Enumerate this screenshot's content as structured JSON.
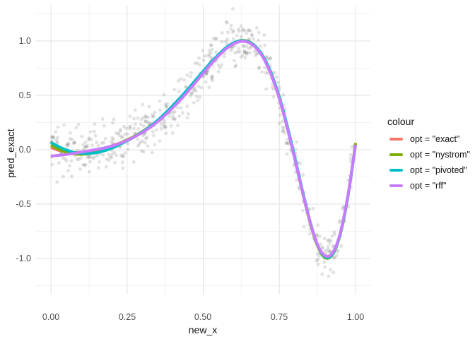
{
  "chart_data": {
    "type": "scatter+line",
    "title": "",
    "xlabel": "new_x",
    "ylabel": "pred_exact",
    "x_range": [
      -0.05,
      1.05
    ],
    "y_range": [
      -1.331,
      1.331
    ],
    "x_ticks": [
      {
        "v": 0.0,
        "label": "0.00"
      },
      {
        "v": 0.25,
        "label": "0.25"
      },
      {
        "v": 0.5,
        "label": "0.50"
      },
      {
        "v": 0.75,
        "label": "0.75"
      },
      {
        "v": 1.0,
        "label": "1.00"
      }
    ],
    "y_ticks": [
      {
        "v": 1.0,
        "label": "1.0"
      },
      {
        "v": 0.5,
        "label": "0.5"
      },
      {
        "v": 0.0,
        "label": "0.0"
      },
      {
        "v": -0.5,
        "label": "-0.5"
      },
      {
        "v": -1.0,
        "label": "-1.0"
      }
    ],
    "x_minor": [
      0.125,
      0.375,
      0.625,
      0.875
    ],
    "y_minor": [
      -1.25,
      -0.75,
      -0.25,
      0.25,
      0.75,
      1.25
    ],
    "grid": {
      "major_color": "#e2e2e2",
      "minor_color": "#f2f2f2",
      "background": "#ffffff"
    },
    "curve_x": [
      0,
      0.025,
      0.05,
      0.075,
      0.1,
      0.125,
      0.15,
      0.175,
      0.2,
      0.225,
      0.25,
      0.275,
      0.3,
      0.325,
      0.35,
      0.375,
      0.4,
      0.425,
      0.45,
      0.475,
      0.5,
      0.525,
      0.55,
      0.575,
      0.6,
      0.625,
      0.65,
      0.675,
      0.7,
      0.725,
      0.75,
      0.775,
      0.8,
      0.825,
      0.85,
      0.875,
      0.9,
      0.925,
      0.95,
      0.975,
      1
    ],
    "series": [
      {
        "name": "exact",
        "label": "opt = \"exact\"",
        "color": "#F8766D",
        "y": [
          0.02,
          -0.005,
          -0.02,
          -0.026,
          -0.024,
          -0.015,
          -0.002,
          0.015,
          0.036,
          0.06,
          0.088,
          0.121,
          0.161,
          0.207,
          0.26,
          0.32,
          0.387,
          0.46,
          0.539,
          0.621,
          0.705,
          0.787,
          0.862,
          0.928,
          0.975,
          0.997,
          0.986,
          0.933,
          0.832,
          0.678,
          0.471,
          0.213,
          -0.077,
          -0.378,
          -0.659,
          -0.876,
          -0.982,
          -0.952,
          -0.77,
          -0.425,
          0.05
        ]
      },
      {
        "name": "nystrom",
        "label": "opt = \"nystrom\"",
        "color": "#7CAE00",
        "y": [
          0.042,
          0.005,
          -0.022,
          -0.038,
          -0.042,
          -0.035,
          -0.018,
          0.005,
          0.03,
          0.058,
          0.09,
          0.125,
          0.167,
          0.214,
          0.268,
          0.33,
          0.397,
          0.47,
          0.548,
          0.63,
          0.713,
          0.795,
          0.869,
          0.935,
          0.982,
          1.004,
          0.993,
          0.94,
          0.838,
          0.683,
          0.475,
          0.216,
          -0.075,
          -0.378,
          -0.662,
          -0.882,
          -0.992,
          -0.962,
          -0.778,
          -0.432,
          0.062
        ]
      },
      {
        "name": "pivoted",
        "label": "opt = \"pivoted\"",
        "color": "#00BFC4",
        "y": [
          0.068,
          0.03,
          -0.002,
          -0.024,
          -0.033,
          -0.034,
          -0.027,
          -0.01,
          0.015,
          0.046,
          0.082,
          0.12,
          0.163,
          0.212,
          0.27,
          0.335,
          0.405,
          0.48,
          0.558,
          0.64,
          0.722,
          0.802,
          0.874,
          0.938,
          0.983,
          1.001,
          0.99,
          0.94,
          0.842,
          0.69,
          0.485,
          0.228,
          -0.062,
          -0.365,
          -0.65,
          -0.872,
          -0.984,
          -0.958,
          -0.772,
          -0.428,
          0.04
        ]
      },
      {
        "name": "rff",
        "label": "opt = \"rff\"",
        "color": "#C77CFF",
        "y": [
          -0.058,
          -0.052,
          -0.044,
          -0.034,
          -0.022,
          -0.01,
          0.002,
          0.016,
          0.034,
          0.057,
          0.086,
          0.119,
          0.158,
          0.204,
          0.258,
          0.318,
          0.385,
          0.458,
          0.537,
          0.619,
          0.703,
          0.786,
          0.861,
          0.927,
          0.974,
          0.996,
          0.985,
          0.932,
          0.83,
          0.676,
          0.469,
          0.211,
          -0.079,
          -0.376,
          -0.655,
          -0.872,
          -0.975,
          -0.948,
          -0.765,
          -0.42,
          0.046
        ]
      }
    ],
    "line_width": 4,
    "scatter": {
      "n": 560,
      "seed": 20,
      "noise_sd": 0.11,
      "color": "#000000",
      "opacity": 0.11,
      "radius": 2.5,
      "follows": "exact"
    },
    "legend": {
      "title": "colour",
      "position": "right"
    }
  }
}
